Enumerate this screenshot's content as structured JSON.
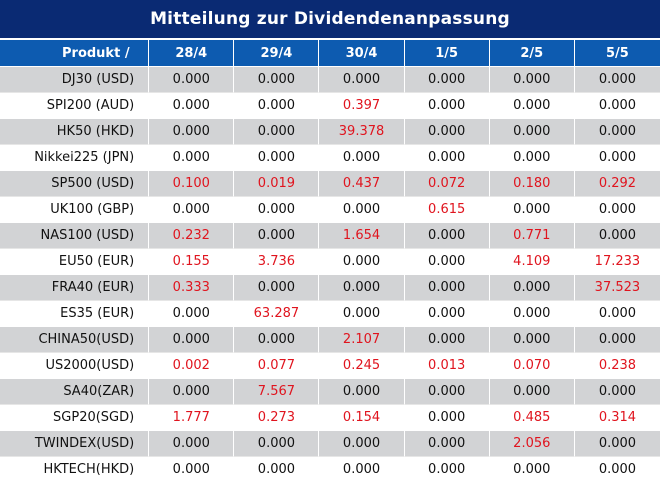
{
  "title": "Mitteilung zur Dividendenanpassung",
  "header": {
    "product_label": "Produkt /",
    "dates": [
      "28/4",
      "29/4",
      "30/4",
      "1/5",
      "2/5",
      "5/5"
    ]
  },
  "rows": [
    {
      "product": "DJ30 (USD)",
      "values": [
        "0.000",
        "0.000",
        "0.000",
        "0.000",
        "0.000",
        "0.000"
      ]
    },
    {
      "product": "SPI200 (AUD)",
      "values": [
        "0.000",
        "0.000",
        "0.397",
        "0.000",
        "0.000",
        "0.000"
      ]
    },
    {
      "product": "HK50 (HKD)",
      "values": [
        "0.000",
        "0.000",
        "39.378",
        "0.000",
        "0.000",
        "0.000"
      ]
    },
    {
      "product": "Nikkei225 (JPN)",
      "values": [
        "0.000",
        "0.000",
        "0.000",
        "0.000",
        "0.000",
        "0.000"
      ]
    },
    {
      "product": "SP500 (USD)",
      "values": [
        "0.100",
        "0.019",
        "0.437",
        "0.072",
        "0.180",
        "0.292"
      ]
    },
    {
      "product": "UK100 (GBP)",
      "values": [
        "0.000",
        "0.000",
        "0.000",
        "0.615",
        "0.000",
        "0.000"
      ]
    },
    {
      "product": "NAS100 (USD)",
      "values": [
        "0.232",
        "0.000",
        "1.654",
        "0.000",
        "0.771",
        "0.000"
      ]
    },
    {
      "product": "EU50 (EUR)",
      "values": [
        "0.155",
        "3.736",
        "0.000",
        "0.000",
        "4.109",
        "17.233"
      ]
    },
    {
      "product": "FRA40 (EUR)",
      "values": [
        "0.333",
        "0.000",
        "0.000",
        "0.000",
        "0.000",
        "37.523"
      ]
    },
    {
      "product": "ES35 (EUR)",
      "values": [
        "0.000",
        "63.287",
        "0.000",
        "0.000",
        "0.000",
        "0.000"
      ]
    },
    {
      "product": "CHINA50(USD)",
      "values": [
        "0.000",
        "0.000",
        "2.107",
        "0.000",
        "0.000",
        "0.000"
      ]
    },
    {
      "product": "US2000(USD)",
      "values": [
        "0.002",
        "0.077",
        "0.245",
        "0.013",
        "0.070",
        "0.238"
      ]
    },
    {
      "product": "SA40(ZAR)",
      "values": [
        "0.000",
        "7.567",
        "0.000",
        "0.000",
        "0.000",
        "0.000"
      ]
    },
    {
      "product": "SGP20(SGD)",
      "values": [
        "1.777",
        "0.273",
        "0.154",
        "0.000",
        "0.485",
        "0.314"
      ]
    },
    {
      "product": "TWINDEX(USD)",
      "values": [
        "0.000",
        "0.000",
        "0.000",
        "0.000",
        "2.056",
        "0.000"
      ]
    },
    {
      "product": "HKTECH(HKD)",
      "values": [
        "0.000",
        "0.000",
        "0.000",
        "0.000",
        "0.000",
        "0.000"
      ]
    }
  ],
  "colors": {
    "title_bg": "#0a2a73",
    "header_bg": "#0d5bb0",
    "row_alt_bg": "#d2d3d5",
    "nonzero_text": "#e0141e"
  }
}
